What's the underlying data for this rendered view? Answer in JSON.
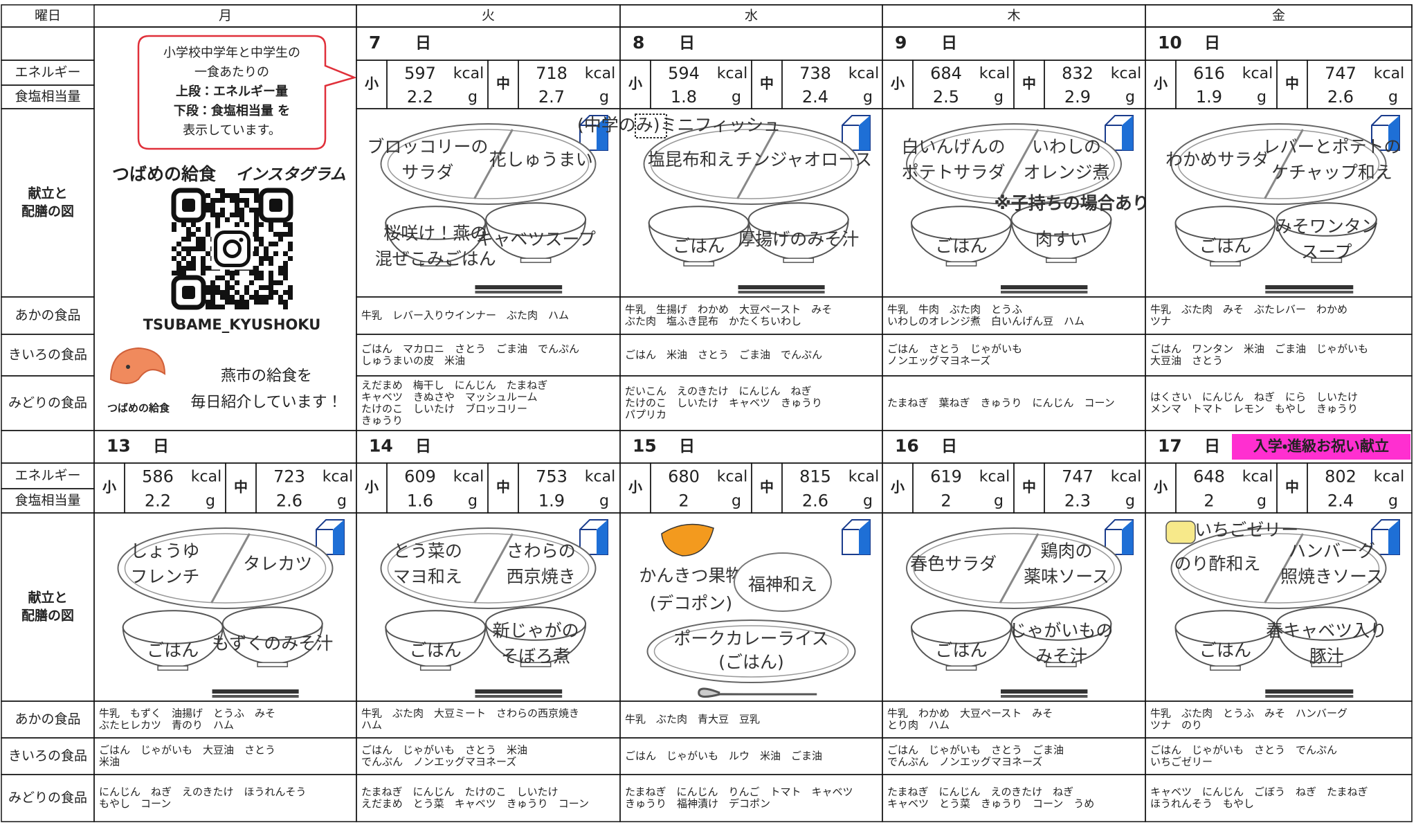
{
  "header": {
    "corner": "曜日",
    "days": [
      "月",
      "火",
      "水",
      "木",
      "金"
    ]
  },
  "labels": {
    "energy": "エネルギー",
    "salt": "食塩相当量",
    "diagram": [
      "献立と",
      "配膳の図"
    ],
    "red": "あかの食品",
    "yellow": "きいろの食品",
    "green": "みどりの食品"
  },
  "small": "小",
  "middle": "中",
  "kcal": "kcal",
  "g": "g",
  "day_suffix": "日",
  "notice": {
    "lines": [
      "小学校中学年と中学生の",
      "一食あたりの",
      "上段：エネルギー量",
      "下段：食塩相当量 を",
      "表示しています。"
    ]
  },
  "instagram": {
    "title": "つばめの給食",
    "tag": "インスタグラム",
    "account": "TSUBAME_KYUSHOKU",
    "logo": "つばめの給食",
    "message": [
      "燕市の給食を",
      "毎日紹介しています！"
    ]
  },
  "weeks": [
    {
      "days": [
        {
          "date": "7",
          "energy_small": 597,
          "salt_small": 2.2,
          "energy_middle": 718,
          "salt_middle": 2.7,
          "dishes": {
            "plate_left": [
              "ブロッコリーの",
              "サラダ"
            ],
            "plate_right": [
              "花しゅうまい"
            ],
            "bowl_left": [
              "桜咲け！燕の",
              "混ぜこみごはん"
            ],
            "bowl_right": [
              "キャベツスープ"
            ]
          },
          "red_foods": [
            "牛乳　レバー入りウインナー　ぶた肉　ハム"
          ],
          "yellow_foods": [
            "ごはん　マカロニ　さとう　ごま油　でんぷん",
            "しゅうまいの皮　米油"
          ],
          "green_foods": [
            "えだまめ　梅干し　にんじん　たまねぎ",
            "キャベツ　きぬさや　マッシュルーム",
            "たけのこ　しいたけ　ブロッコリー",
            "きゅうり"
          ]
        },
        {
          "date": "8",
          "energy_small": 594,
          "salt_small": 1.8,
          "energy_middle": 738,
          "salt_middle": 2.4,
          "dishes": {
            "top_note": [
              "(中学のみ)ミニフィッシュ"
            ],
            "plate_left": [
              "塩昆布和え"
            ],
            "plate_right": [
              "チンジャオロース"
            ],
            "bowl_left": [
              "ごはん"
            ],
            "bowl_right": [
              "厚揚げのみそ汁"
            ]
          },
          "red_foods": [
            "牛乳　生揚げ　わかめ　大豆ペースト　みそ",
            "ぶた肉　塩ふき昆布　かたくちいわし"
          ],
          "yellow_foods": [
            "ごはん　米油　さとう　ごま油　でんぷん"
          ],
          "green_foods": [
            "だいこん　えのきたけ　にんじん　ねぎ",
            "たけのこ　しいたけ　キャベツ　きゅうり",
            "パプリカ"
          ]
        },
        {
          "date": "9",
          "energy_small": 684,
          "salt_small": 2.5,
          "energy_middle": 832,
          "salt_middle": 2.9,
          "dishes": {
            "plate_left": [
              "白いんげんの",
              "ポテトサラダ"
            ],
            "plate_right": [
              "いわしの",
              "オレンジ煮"
            ],
            "note": [
              "※子持ちの場合あり"
            ],
            "bowl_left": [
              "ごはん"
            ],
            "bowl_right": [
              "肉すい"
            ]
          },
          "red_foods": [
            "牛乳　牛肉　ぶた肉　とうふ",
            "いわしのオレンジ煮　白いんげん豆　ハム"
          ],
          "yellow_foods": [
            "ごはん　さとう　じゃがいも",
            "ノンエッグマヨネーズ"
          ],
          "green_foods": [
            "たまねぎ　葉ねぎ　きゅうり　にんじん　コーン"
          ]
        },
        {
          "date": "10",
          "energy_small": 616,
          "salt_small": 1.9,
          "energy_middle": 747,
          "salt_middle": 2.6,
          "dishes": {
            "plate_left": [
              "わかめサラダ"
            ],
            "plate_right": [
              "レバーとポテトの",
              "ケチャップ和え"
            ],
            "bowl_left": [
              "ごはん"
            ],
            "bowl_right": [
              "みそワンタン",
              "スープ"
            ]
          },
          "red_foods": [
            "牛乳　ぶた肉　みそ　ぶたレバー　わかめ",
            "ツナ"
          ],
          "yellow_foods": [
            "ごはん　ワンタン　米油　ごま油　じゃがいも",
            "大豆油　さとう"
          ],
          "green_foods": [
            "はくさい　にんじん　ねぎ　にら　しいたけ",
            "メンマ　トマト　レモン　もやし　きゅうり"
          ]
        }
      ]
    },
    {
      "days": [
        {
          "date": "13",
          "energy_small": 586,
          "salt_small": 2.2,
          "energy_middle": 723,
          "salt_middle": 2.6,
          "dishes": {
            "plate_left": [
              "しょうゆ",
              "フレンチ"
            ],
            "plate_right": [
              "タレカツ"
            ],
            "bowl_left": [
              "ごはん"
            ],
            "bowl_right": [
              "もずくのみそ汁"
            ]
          },
          "red_foods": [
            "牛乳　もずく　油揚げ　とうふ　みそ",
            "ぶたヒレカツ　青のり　ハム"
          ],
          "yellow_foods": [
            "ごはん　じゃがいも　大豆油　さとう",
            "米油"
          ],
          "green_foods": [
            "にんじん　ねぎ　えのきたけ　ほうれんそう",
            "もやし　コーン"
          ]
        },
        {
          "date": "14",
          "energy_small": 609,
          "salt_small": 1.6,
          "energy_middle": 753,
          "salt_middle": 1.9,
          "dishes": {
            "plate_left": [
              "とう菜の",
              "マヨ和え"
            ],
            "plate_right": [
              "さわらの",
              "西京焼き"
            ],
            "bowl_left": [
              "ごはん"
            ],
            "bowl_right": [
              "新じゃがの",
              "そぼろ煮"
            ]
          },
          "red_foods": [
            "牛乳　ぶた肉　大豆ミート　さわらの西京焼き",
            "ハム"
          ],
          "yellow_foods": [
            "ごはん　じゃがいも　さとう　米油",
            "でんぷん　ノンエッグマヨネーズ"
          ],
          "green_foods": [
            "たまねぎ　にんじん　たけのこ　しいたけ",
            "えだまめ　とう菜　キャベツ　きゅうり　コーン"
          ]
        },
        {
          "date": "15",
          "energy_small": 680,
          "salt_small": 2,
          "energy_middle": 815,
          "salt_middle": 2.6,
          "dishes": {
            "fruit": [
              "かんきつ果物",
              "(デコポン)"
            ],
            "side": [
              "福神和え"
            ],
            "curry": [
              "ポークカレーライス",
              "(ごはん)"
            ]
          },
          "red_foods": [
            "牛乳　ぶた肉　青大豆　豆乳"
          ],
          "yellow_foods": [
            "ごはん　じゃがいも　ルウ　米油　ごま油"
          ],
          "green_foods": [
            "たまねぎ　にんじん　りんご　トマト　キャベツ",
            "きゅうり　福神漬け　デコポン"
          ]
        },
        {
          "date": "16",
          "energy_small": 619,
          "salt_small": 2,
          "energy_middle": 747,
          "salt_middle": 2.3,
          "dishes": {
            "plate_left": [
              "春色サラダ"
            ],
            "plate_right": [
              "鶏肉の",
              "薬味ソース"
            ],
            "bowl_left": [
              "ごはん"
            ],
            "bowl_right": [
              "じゃがいもの",
              "みそ汁"
            ]
          },
          "red_foods": [
            "牛乳　わかめ　大豆ペースト　みそ",
            "とり肉　ハム"
          ],
          "yellow_foods": [
            "ごはん　じゃがいも　さとう　ごま油",
            "でんぷん　ノンエッグマヨネーズ"
          ],
          "green_foods": [
            "たまねぎ　にんじん　えのきたけ　ねぎ",
            "キャベツ　とう菜　きゅうり　コーン　うめ"
          ]
        },
        {
          "date": "17",
          "badge": "入学・進級お祝い献立",
          "energy_small": 648,
          "salt_small": 2,
          "energy_middle": 802,
          "salt_middle": 2.4,
          "dishes": {
            "top_note": [
              "いちごゼリー"
            ],
            "plate_left": [
              "のり酢和え"
            ],
            "plate_right": [
              "ハンバーグ",
              "照焼きソース"
            ],
            "bowl_left": [
              "ごはん"
            ],
            "bowl_right": [
              "春キャベツ入り",
              "豚汁"
            ]
          },
          "red_foods": [
            "牛乳　ぶた肉　とうふ　みそ　ハンバーグ",
            "ツナ　のり"
          ],
          "yellow_foods": [
            "ごはん　じゃがいも　さとう　でんぷん",
            "いちごゼリー"
          ],
          "green_foods": [
            "キャベツ　にんじん　ごぼう　ねぎ　たまねぎ",
            "ほうれんそう　もやし"
          ]
        }
      ]
    }
  ]
}
